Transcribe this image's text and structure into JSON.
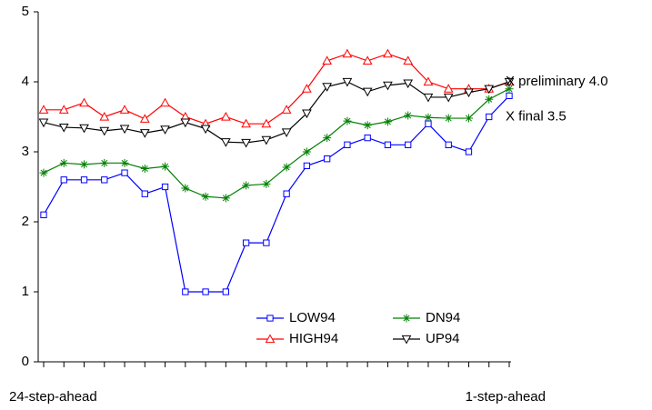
{
  "chart_data": {
    "type": "line",
    "categories": [
      "24-step-ahead",
      null,
      null,
      null,
      null,
      null,
      null,
      null,
      null,
      null,
      null,
      null,
      null,
      null,
      null,
      null,
      null,
      null,
      null,
      null,
      null,
      null,
      null,
      "1-step-ahead"
    ],
    "series": [
      {
        "name": "LOW94",
        "color": "#0000ff",
        "marker": "square",
        "values": [
          2.1,
          2.6,
          2.6,
          2.6,
          2.7,
          2.4,
          2.5,
          1.0,
          1.0,
          1.0,
          1.7,
          1.7,
          2.4,
          2.8,
          2.9,
          3.1,
          3.2,
          3.1,
          3.1,
          3.4,
          3.1,
          3.0,
          3.5,
          3.8
        ]
      },
      {
        "name": "HIGH94",
        "color": "#ff0000",
        "marker": "triangle",
        "values": [
          3.6,
          3.6,
          3.7,
          3.5,
          3.6,
          3.47,
          3.7,
          3.5,
          3.4,
          3.5,
          3.4,
          3.4,
          3.6,
          3.9,
          4.3,
          4.4,
          4.3,
          4.4,
          4.3,
          4.0,
          3.9,
          3.9,
          3.9,
          4.0
        ]
      },
      {
        "name": "DN94",
        "color": "#008000",
        "marker": "star",
        "values": [
          2.7,
          2.84,
          2.82,
          2.84,
          2.84,
          2.76,
          2.79,
          2.48,
          2.36,
          2.34,
          2.52,
          2.54,
          2.78,
          3.0,
          3.2,
          3.44,
          3.38,
          3.43,
          3.52,
          3.49,
          3.48,
          3.48,
          3.75,
          3.9
        ]
      },
      {
        "name": "UP94",
        "color": "#000000",
        "marker": "triangle-down",
        "values": [
          3.42,
          3.35,
          3.34,
          3.3,
          3.33,
          3.27,
          3.32,
          3.42,
          3.33,
          3.14,
          3.13,
          3.17,
          3.28,
          3.55,
          3.93,
          4.0,
          3.86,
          3.95,
          3.98,
          3.78,
          3.78,
          3.85,
          3.9,
          4.0
        ]
      }
    ],
    "annotations": [
      {
        "text": "X preliminary 4.0",
        "value": 4.0
      },
      {
        "text": "X final 3.5",
        "value": 3.5
      }
    ],
    "ylim": [
      0,
      5
    ],
    "yticks": [
      0,
      1,
      2,
      3,
      4,
      5
    ],
    "grid": false,
    "legend": "lower right"
  }
}
